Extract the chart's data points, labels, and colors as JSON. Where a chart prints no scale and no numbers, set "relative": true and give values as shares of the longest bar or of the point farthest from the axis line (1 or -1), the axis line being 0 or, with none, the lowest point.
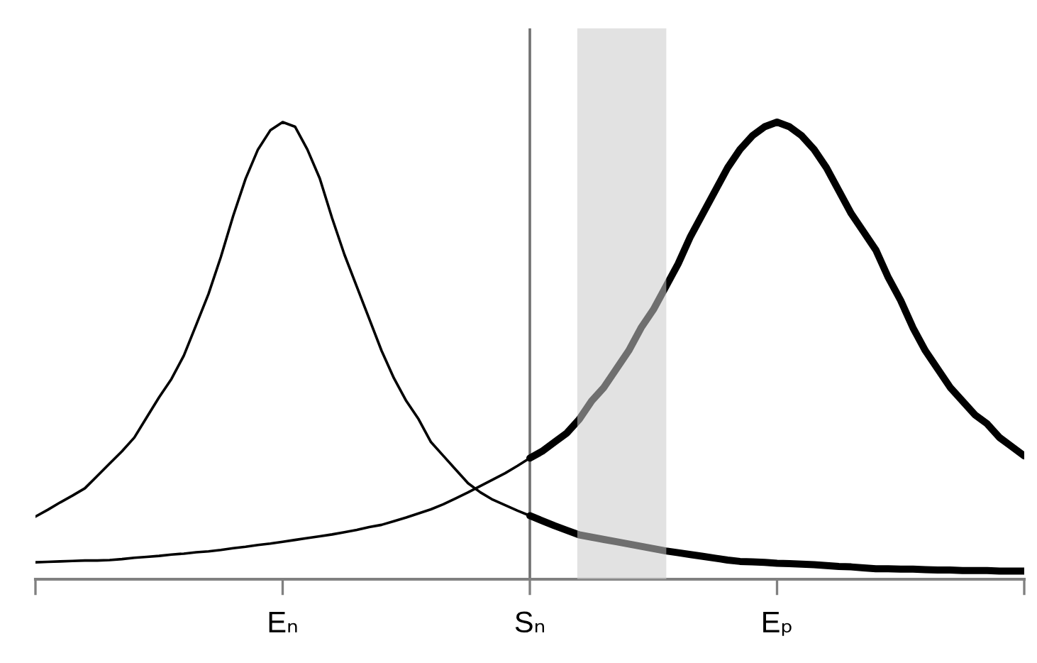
{
  "chart_data": {
    "type": "line",
    "relative": true,
    "tick_labels": "x",
    "categories": [
      null,
      null,
      null,
      null,
      null,
      null,
      null,
      null,
      null,
      null,
      null,
      null,
      null,
      null,
      null,
      null,
      null,
      null,
      null,
      null,
      "Eₙ",
      null,
      null,
      null,
      null,
      null,
      null,
      null,
      null,
      null,
      null,
      null,
      null,
      null,
      null,
      null,
      null,
      null,
      null,
      null,
      "Sₙ",
      null,
      null,
      null,
      null,
      null,
      null,
      null,
      null,
      null,
      null,
      null,
      null,
      null,
      null,
      null,
      null,
      null,
      null,
      null,
      "Eₚ",
      null,
      null,
      null,
      null,
      null,
      null,
      null,
      null,
      null,
      null,
      null,
      null,
      null,
      null,
      null,
      null,
      null,
      null,
      null,
      null
    ],
    "series": [
      {
        "color": "#000000",
        "values": [
          0.137,
          0.152,
          0.168,
          0.183,
          0.199,
          0.226,
          0.253,
          0.28,
          0.31,
          0.354,
          0.398,
          0.438,
          0.489,
          0.556,
          0.624,
          0.705,
          0.795,
          0.876,
          0.94,
          0.982,
          1.0,
          0.99,
          0.94,
          0.877,
          0.79,
          0.71,
          0.64,
          0.57,
          0.5,
          0.44,
          0.39,
          0.35,
          0.3,
          0.27,
          0.24,
          0.21,
          0.19,
          0.174,
          0.162,
          0.15,
          0.139,
          null,
          null,
          null,
          null,
          null,
          null,
          null,
          null,
          null,
          null,
          null,
          null,
          null,
          null,
          null,
          null,
          null,
          null,
          null,
          null,
          null,
          null,
          null,
          null,
          null,
          null,
          null,
          null,
          null,
          null,
          null,
          null,
          null,
          null,
          null,
          null,
          null,
          null,
          null,
          null
        ]
      },
      {
        "color": "#000000",
        "values": [
          null,
          null,
          null,
          null,
          null,
          null,
          null,
          null,
          null,
          null,
          null,
          null,
          null,
          null,
          null,
          null,
          null,
          null,
          null,
          null,
          null,
          null,
          null,
          null,
          null,
          null,
          null,
          null,
          null,
          null,
          null,
          null,
          null,
          null,
          null,
          null,
          null,
          null,
          null,
          null,
          0.139,
          0.128,
          0.117,
          0.107,
          0.097,
          0.092,
          0.087,
          0.082,
          0.077,
          0.072,
          0.067,
          0.062,
          0.058,
          0.054,
          0.05,
          0.046,
          0.042,
          0.039,
          0.038,
          0.037,
          0.035,
          0.034,
          0.033,
          0.032,
          0.03,
          0.028,
          0.027,
          0.025,
          0.023,
          0.023,
          0.022,
          0.022,
          0.021,
          0.02,
          0.02,
          0.019,
          0.019,
          0.019,
          0.018,
          0.018,
          0.018
        ]
      },
      {
        "color": "#000000",
        "values": [
          0.037,
          0.038,
          0.039,
          0.04,
          0.041,
          0.041,
          0.042,
          0.044,
          0.047,
          0.049,
          0.051,
          0.054,
          0.056,
          0.059,
          0.061,
          0.064,
          0.068,
          0.071,
          0.075,
          0.078,
          0.082,
          0.086,
          0.09,
          0.094,
          0.098,
          0.103,
          0.108,
          0.114,
          0.119,
          0.127,
          0.135,
          0.144,
          0.153,
          0.164,
          0.177,
          0.19,
          0.204,
          0.218,
          0.232,
          0.248,
          0.265,
          null,
          null,
          null,
          null,
          null,
          null,
          null,
          null,
          null,
          null,
          null,
          null,
          null,
          null,
          null,
          null,
          null,
          null,
          null,
          null,
          null,
          null,
          null,
          null,
          null,
          null,
          null,
          null,
          null,
          null,
          null,
          null,
          null,
          null,
          null,
          null,
          null,
          null,
          null,
          null
        ]
      },
      {
        "color": "#000000",
        "values": [
          null,
          null,
          null,
          null,
          null,
          null,
          null,
          null,
          null,
          null,
          null,
          null,
          null,
          null,
          null,
          null,
          null,
          null,
          null,
          null,
          null,
          null,
          null,
          null,
          null,
          null,
          null,
          null,
          null,
          null,
          null,
          null,
          null,
          null,
          null,
          null,
          null,
          null,
          null,
          null,
          0.265,
          0.28,
          0.3,
          0.32,
          0.35,
          0.39,
          0.42,
          0.46,
          0.5,
          0.55,
          0.59,
          0.64,
          0.69,
          0.75,
          0.8,
          0.85,
          0.9,
          0.94,
          0.97,
          0.99,
          1.0,
          0.99,
          0.97,
          0.94,
          0.9,
          0.85,
          0.8,
          0.76,
          0.72,
          0.66,
          0.61,
          0.55,
          0.5,
          0.46,
          0.42,
          0.39,
          0.36,
          0.34,
          0.31,
          0.29,
          0.27
        ]
      }
    ],
    "ref_lines": [
      {
        "axis": "x",
        "value": "Sₙ",
        "color": "#707070"
      }
    ]
  }
}
